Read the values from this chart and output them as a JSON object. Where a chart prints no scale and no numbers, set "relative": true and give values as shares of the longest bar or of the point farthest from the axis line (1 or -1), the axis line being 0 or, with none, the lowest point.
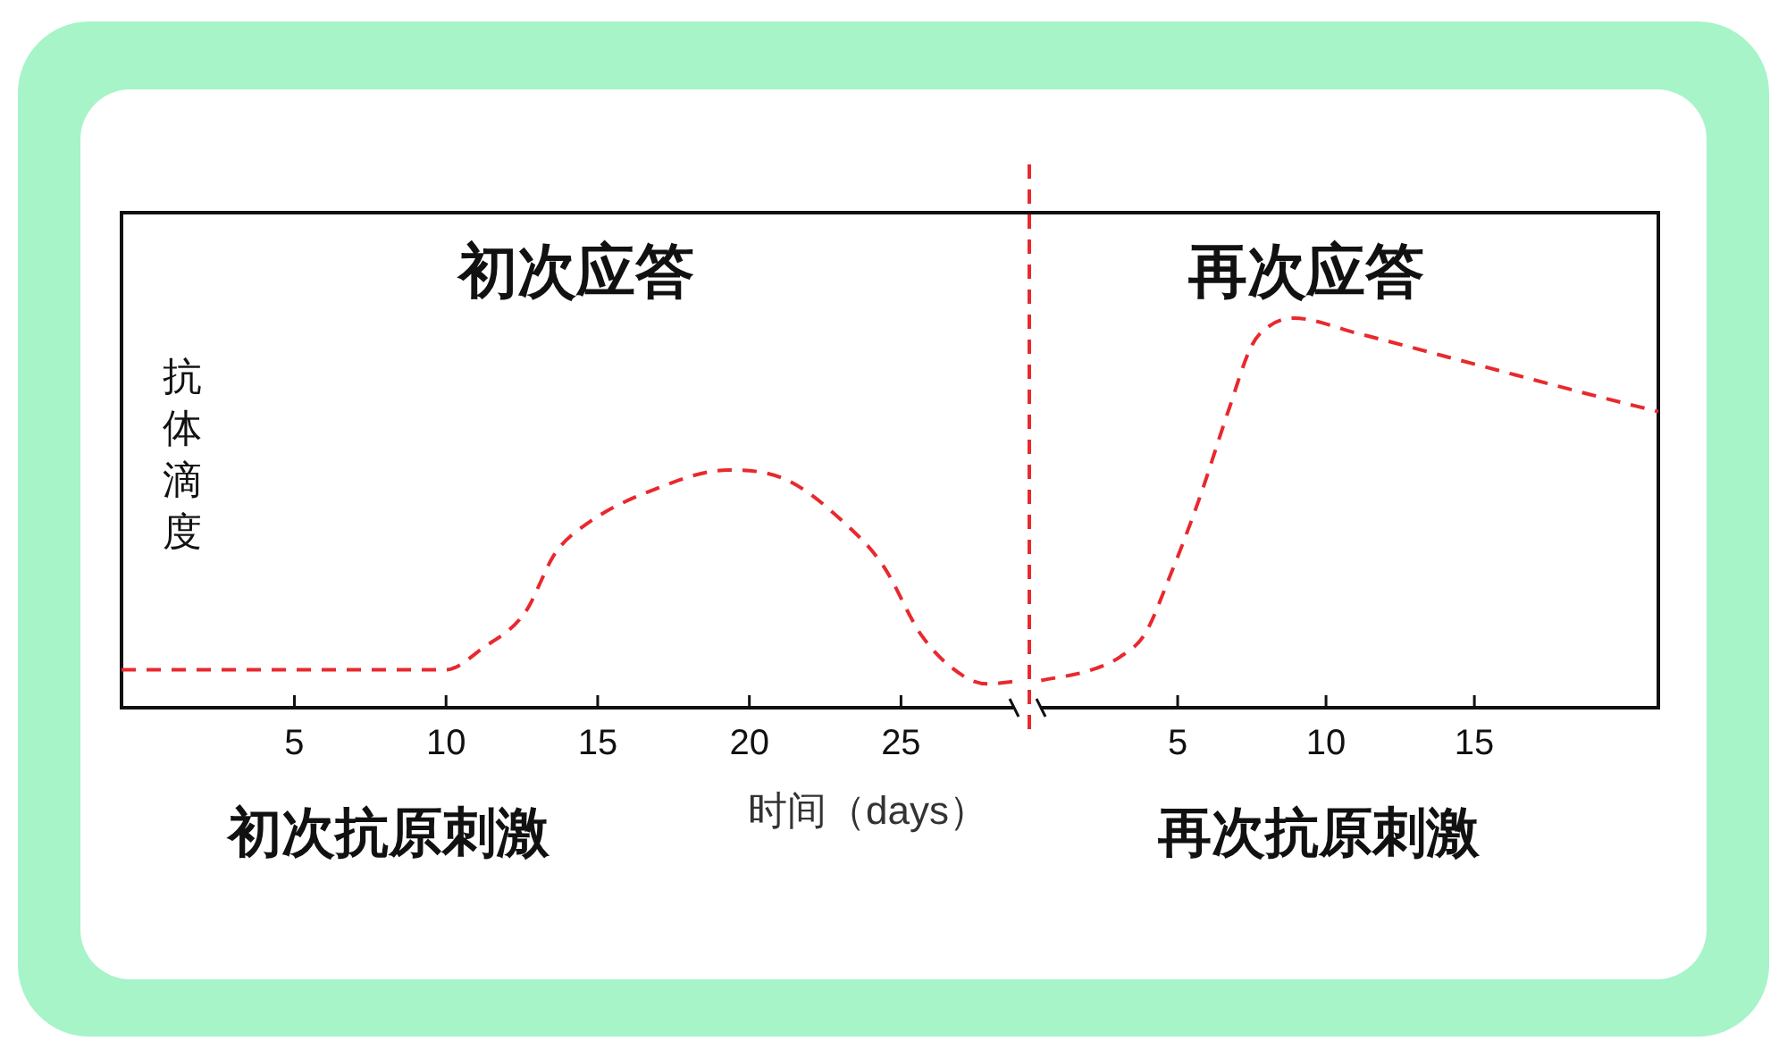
{
  "chart_data": [
    {
      "type": "line",
      "title": "初次应答",
      "xlabel": "时间（days）",
      "ylabel": "抗体滴度",
      "relative": true,
      "color": "#e8292e",
      "line_style": "dashed",
      "x": [
        -0.7,
        5,
        10,
        11.2,
        12.6,
        13.6,
        14.6,
        16.9,
        19.3,
        21.2,
        23.2,
        24.4,
        25.7,
        27.1,
        27.9,
        28.7
      ],
      "values": [
        0.16,
        0.16,
        0.16,
        0.25,
        0.4,
        0.65,
        0.77,
        0.92,
        1,
        0.96,
        0.77,
        0.6,
        0.3,
        0.13,
        0.1,
        0.11
      ],
      "xlim": [
        -0.7,
        28.7
      ],
      "xticks": [
        5,
        10,
        15,
        20,
        25
      ],
      "annotations": [
        "初次抗原刺激"
      ]
    },
    {
      "type": "line",
      "title": "再次应答",
      "relative": true,
      "color": "#e8292e",
      "line_style": "dashed",
      "x": [
        0.4,
        2,
        3.05,
        3.9,
        4.7,
        5.7,
        6.7,
        7.5,
        8.1,
        8.9,
        11.1,
        15.1,
        19.1,
        21.2
      ],
      "values": [
        0.07,
        0.095,
        0.13,
        0.19,
        0.33,
        0.53,
        0.76,
        0.93,
        0.98,
        1,
        0.96,
        0.88,
        0.8,
        0.76
      ],
      "xlim": [
        0,
        21.2
      ],
      "xticks": [
        5,
        10,
        15
      ],
      "ref_lines": [
        {
          "axis": "x",
          "value": 0,
          "color": "#e8292e",
          "line_style": "dashed"
        }
      ],
      "annotations": [
        "再次抗原刺激"
      ]
    }
  ]
}
